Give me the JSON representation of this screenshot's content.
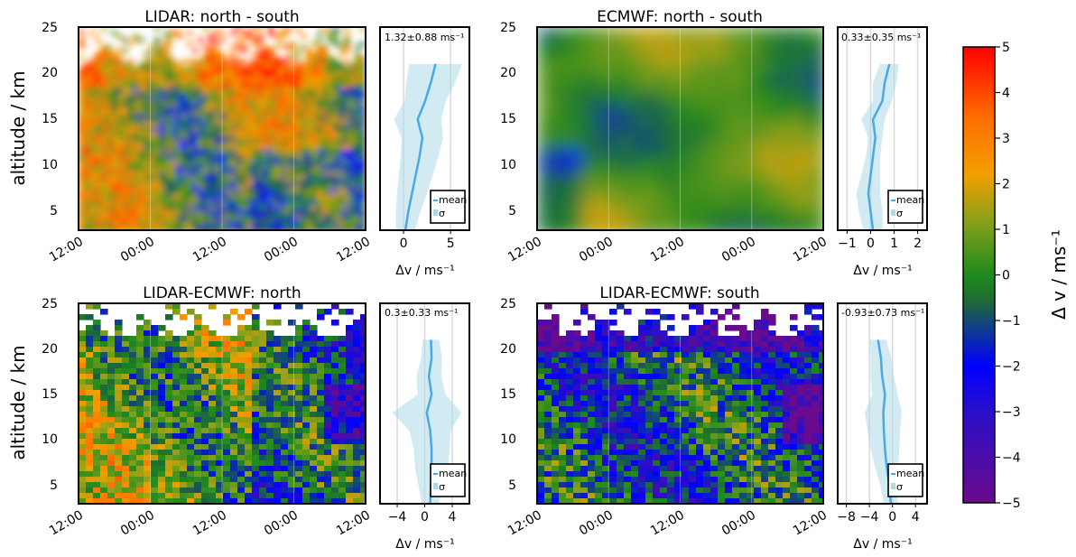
{
  "chart_data": [
    {
      "type": "heatmap",
      "title": "LIDAR: north - south",
      "ylabel": "altitude / km",
      "x_ticks": [
        "12:00",
        "00:00",
        "12:00",
        "00:00",
        "12:00"
      ],
      "y_ticks": [
        5,
        10,
        15,
        20,
        25
      ],
      "ylim": [
        3,
        25
      ],
      "profile": {
        "stat": "1.32±0.88 ms⁻¹",
        "xlabel": "Δv / ms⁻¹",
        "x_ticks": [
          0,
          5
        ],
        "xlim": [
          -2.5,
          7
        ],
        "legend": [
          "mean",
          "σ"
        ],
        "altitude": [
          3,
          5,
          7,
          9,
          11,
          13,
          15,
          17,
          19,
          21
        ],
        "mean": [
          0.2,
          0.5,
          0.9,
          1.3,
          1.7,
          2.0,
          1.5,
          2.3,
          2.9,
          3.4
        ],
        "sigma": [
          1.0,
          1.3,
          1.6,
          1.8,
          2.0,
          2.2,
          2.5,
          2.2,
          2.6,
          2.8
        ]
      }
    },
    {
      "type": "heatmap",
      "title": "ECMWF: north - south",
      "ylabel": "",
      "x_ticks": [
        "12:00",
        "00:00",
        "12:00",
        "00:00",
        "12:00"
      ],
      "y_ticks": [
        5,
        10,
        15,
        20,
        25
      ],
      "ylim": [
        3,
        25
      ],
      "profile": {
        "stat": "0.33±0.35 ms⁻¹",
        "xlabel": "Δv / ms⁻¹",
        "x_ticks": [
          -1,
          0,
          1,
          2
        ],
        "xlim": [
          -1.4,
          2.4
        ],
        "legend": [
          "mean",
          "σ"
        ],
        "altitude": [
          3,
          5,
          7,
          9,
          11,
          13,
          15,
          17,
          19,
          21
        ],
        "mean": [
          0.1,
          0.0,
          -0.1,
          0.0,
          0.1,
          0.2,
          0.1,
          0.5,
          0.6,
          0.8
        ],
        "sigma": [
          0.4,
          0.5,
          0.5,
          0.4,
          0.3,
          0.3,
          0.5,
          0.4,
          0.5,
          0.4
        ]
      }
    },
    {
      "type": "heatmap",
      "title": "LIDAR-ECMWF: north",
      "ylabel": "altitude / km",
      "x_ticks": [
        "12:00",
        "00:00",
        "12:00",
        "00:00",
        "12:00"
      ],
      "y_ticks": [
        5,
        10,
        15,
        20,
        25
      ],
      "ylim": [
        3,
        25
      ],
      "profile": {
        "stat": "0.3±0.33 ms⁻¹",
        "xlabel": "Δv / ms⁻¹",
        "x_ticks": [
          -4,
          0,
          4
        ],
        "xlim": [
          -6.5,
          6.5
        ],
        "legend": [
          "mean",
          "σ"
        ],
        "altitude": [
          3,
          5,
          7,
          9,
          11,
          13,
          15,
          17,
          19,
          21
        ],
        "mean": [
          0.8,
          0.9,
          1.0,
          1.0,
          0.8,
          0.3,
          1.0,
          0.6,
          1.0,
          0.9
        ],
        "sigma": [
          1.2,
          1.8,
          2.4,
          2.6,
          3.0,
          5.0,
          2.0,
          1.8,
          1.5,
          1.2
        ]
      }
    },
    {
      "type": "heatmap",
      "title": "LIDAR-ECMWF: south",
      "ylabel": "",
      "x_ticks": [
        "12:00",
        "00:00",
        "12:00",
        "00:00",
        "12:00"
      ],
      "y_ticks": [
        5,
        10,
        15,
        20,
        25
      ],
      "ylim": [
        3,
        25
      ],
      "profile": {
        "stat": "-0.93±0.73 ms⁻¹",
        "xlabel": "Δv / ms⁻¹",
        "x_ticks": [
          -8,
          -4,
          0,
          4
        ],
        "xlim": [
          -9.5,
          6
        ],
        "legend": [
          "mean",
          "σ"
        ],
        "altitude": [
          3,
          5,
          7,
          9,
          11,
          13,
          15,
          17,
          19,
          21
        ],
        "mean": [
          -0.3,
          -0.5,
          -1.0,
          -1.3,
          -1.5,
          -1.6,
          -1.3,
          -1.8,
          -2.0,
          -2.5
        ],
        "sigma": [
          1.2,
          1.6,
          2.0,
          2.5,
          2.8,
          3.2,
          2.2,
          2.0,
          1.8,
          1.4
        ]
      }
    }
  ],
  "colorbar": {
    "label": "Δ v / ms⁻¹",
    "ticks": [
      5,
      4,
      3,
      2,
      1,
      0,
      -1,
      -2,
      -3,
      -4,
      -5
    ],
    "range": [
      -5,
      5
    ],
    "colors": [
      "#6a0a8c",
      "#0000ff",
      "#1e8a1e",
      "#f2a000",
      "#ff0000"
    ]
  }
}
